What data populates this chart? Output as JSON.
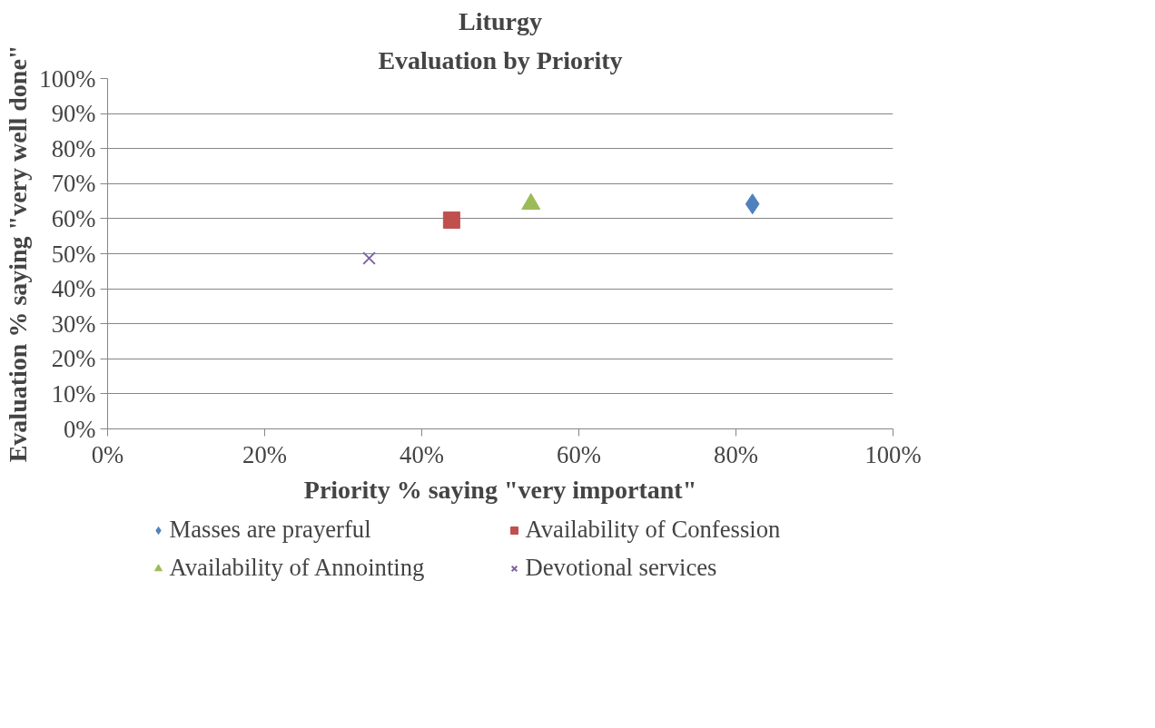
{
  "chart_data": {
    "type": "scatter",
    "title": "Liturgy",
    "subtitle": "Evaluation by Priority",
    "xlabel": "Priority % saying \"very important\"",
    "ylabel": "Evaluation % saying \"very well done\"",
    "series": [
      {
        "name": "Masses are prayerful",
        "color": "#4f81bd",
        "marker": "diamond",
        "x": [
          82.1
        ],
        "values": [
          64.2
        ]
      },
      {
        "name": "Availability of Confession",
        "color": "#c0504d",
        "marker": "square",
        "x": [
          43.8
        ],
        "values": [
          59.6
        ]
      },
      {
        "name": "Availability of Annointing",
        "color": "#9bbb59",
        "marker": "triangle",
        "x": [
          53.9
        ],
        "values": [
          64.2
        ]
      },
      {
        "name": "Devotional services",
        "color": "#8064a2",
        "marker": "cross",
        "x": [
          33.3
        ],
        "values": [
          48.7
        ]
      }
    ],
    "xlim": [
      0,
      100
    ],
    "ylim": [
      0,
      100
    ],
    "xticks": [
      {
        "value": 0,
        "label": "0%"
      },
      {
        "value": 20,
        "label": "20%"
      },
      {
        "value": 40,
        "label": "40%"
      },
      {
        "value": 60,
        "label": "60%"
      },
      {
        "value": 80,
        "label": "80%"
      },
      {
        "value": 100,
        "label": "100%"
      }
    ],
    "yticks": [
      {
        "value": 0,
        "label": "0%"
      },
      {
        "value": 10,
        "label": "10%"
      },
      {
        "value": 20,
        "label": "20%"
      },
      {
        "value": 30,
        "label": "30%"
      },
      {
        "value": 40,
        "label": "40%"
      },
      {
        "value": 50,
        "label": "50%"
      },
      {
        "value": 60,
        "label": "60%"
      },
      {
        "value": 70,
        "label": "70%"
      },
      {
        "value": 80,
        "label": "80%"
      },
      {
        "value": 90,
        "label": "90%"
      },
      {
        "value": 100,
        "label": "100%"
      }
    ],
    "grid": "y",
    "legend": "bottom"
  }
}
